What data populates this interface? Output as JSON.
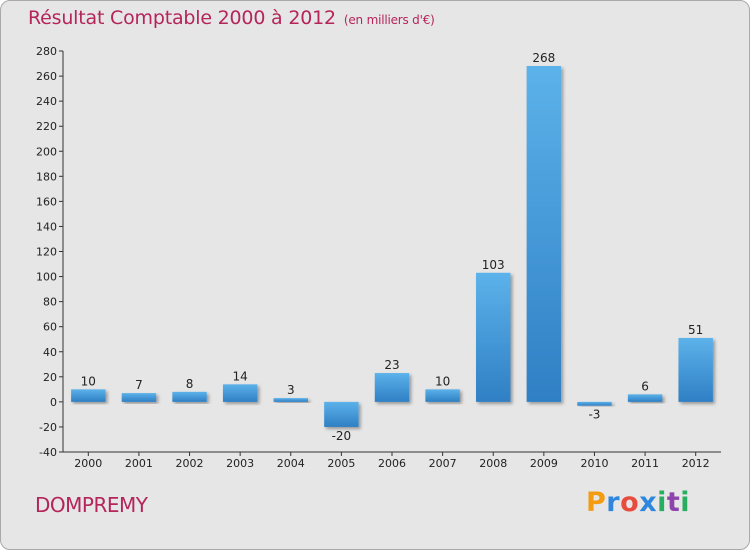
{
  "header": {
    "title": "Résultat Comptable 2000 à 2012",
    "subtitle": "(en milliers d'€)"
  },
  "commune": "DOMPREMY",
  "brand": {
    "name": "Proxiti",
    "letters": [
      "P",
      "r",
      "o",
      "x",
      "i",
      "t",
      "i"
    ],
    "letter_colors": [
      "#f39c12",
      "#2e86de",
      "#e74c3c",
      "#2e86de",
      "#27ae60",
      "#8e44ad",
      "#27ae60"
    ]
  },
  "colors": {
    "background": "#e6e6e6",
    "bar_top": "#5cb2ea",
    "bar_bottom": "#2f7fc4",
    "text_accent": "#b5255a"
  },
  "chart_data": {
    "type": "bar",
    "categories": [
      "2000",
      "2001",
      "2002",
      "2003",
      "2004",
      "2005",
      "2006",
      "2007",
      "2008",
      "2009",
      "2010",
      "2011",
      "2012"
    ],
    "values": [
      10,
      7,
      8,
      14,
      3,
      -20,
      23,
      10,
      103,
      268,
      -3,
      6,
      51
    ],
    "ylim": [
      -40,
      280
    ],
    "yticks": [
      -40,
      -20,
      0,
      20,
      40,
      60,
      80,
      100,
      120,
      140,
      160,
      180,
      200,
      220,
      240,
      260,
      280
    ],
    "grid": false,
    "xlabel": "",
    "ylabel": ""
  }
}
